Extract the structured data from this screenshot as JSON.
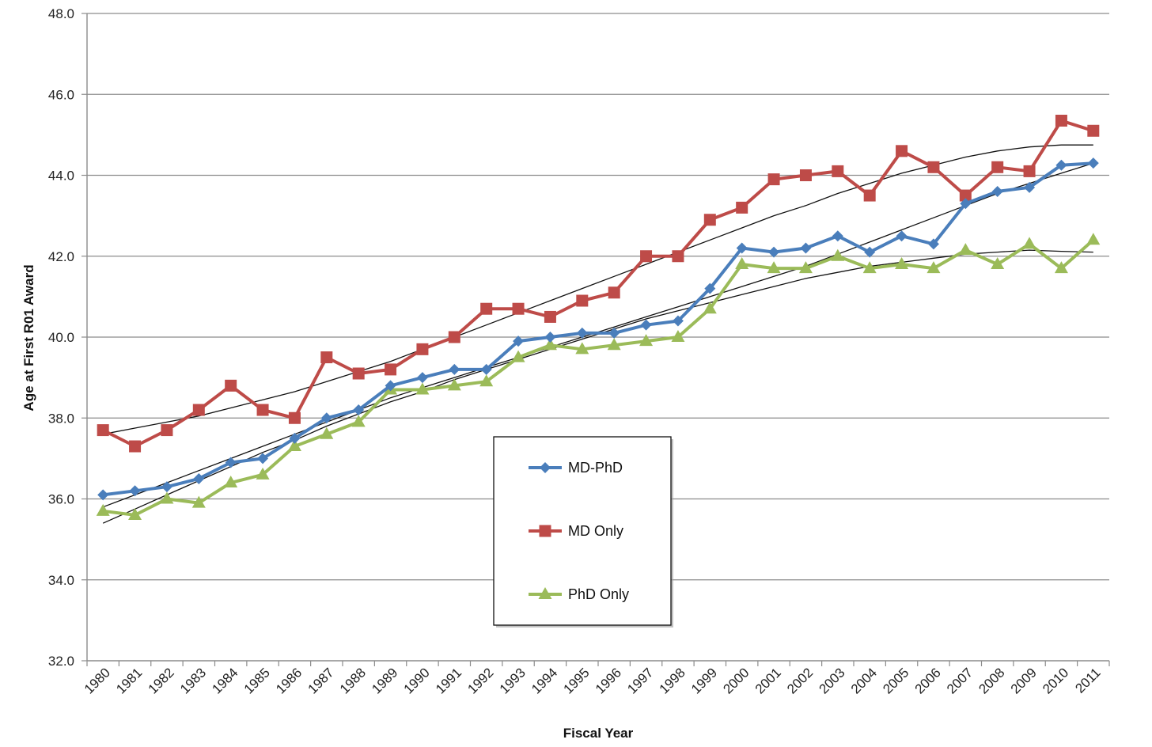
{
  "chart_data": {
    "type": "line",
    "title": "",
    "xlabel": "Fiscal Year",
    "ylabel": "Age at First R01 Award",
    "ylim": [
      32.0,
      48.0
    ],
    "yticks": [
      "32.0",
      "34.0",
      "36.0",
      "38.0",
      "40.0",
      "42.0",
      "44.0",
      "46.0",
      "48.0"
    ],
    "grid": "horizontal",
    "legend_placement": "center-bottom",
    "categories": [
      "1980",
      "1981",
      "1982",
      "1983",
      "1984",
      "1985",
      "1986",
      "1987",
      "1988",
      "1989",
      "1990",
      "1991",
      "1992",
      "1993",
      "1994",
      "1995",
      "1996",
      "1997",
      "1998",
      "1999",
      "2000",
      "2001",
      "2002",
      "2003",
      "2004",
      "2005",
      "2006",
      "2007",
      "2008",
      "2009",
      "2010",
      "2011"
    ],
    "series": [
      {
        "name": "MD-PhD",
        "color": "#4a7ebb",
        "marker": "diamond",
        "values": [
          36.1,
          36.2,
          36.3,
          36.5,
          36.9,
          37.0,
          37.5,
          38.0,
          38.2,
          38.8,
          39.0,
          39.2,
          39.2,
          39.9,
          40.0,
          40.1,
          40.1,
          40.3,
          40.4,
          41.2,
          42.2,
          42.1,
          42.2,
          42.5,
          42.1,
          42.5,
          42.3,
          43.3,
          43.6,
          43.7,
          44.25,
          44.3
        ],
        "trend": [
          35.8,
          36.1,
          36.4,
          36.7,
          37.0,
          37.3,
          37.6,
          37.9,
          38.2,
          38.5,
          38.75,
          39.0,
          39.25,
          39.5,
          39.75,
          40.0,
          40.25,
          40.5,
          40.75,
          41.0,
          41.25,
          41.5,
          41.75,
          42.05,
          42.35,
          42.65,
          42.95,
          43.25,
          43.55,
          43.8,
          44.05,
          44.3
        ]
      },
      {
        "name": "MD Only",
        "color": "#be4b48",
        "marker": "square",
        "values": [
          37.7,
          37.3,
          37.7,
          38.2,
          38.8,
          38.2,
          38.0,
          39.5,
          39.1,
          39.2,
          39.7,
          40.0,
          40.7,
          40.7,
          40.5,
          40.9,
          41.1,
          42.0,
          42.0,
          42.9,
          43.2,
          43.9,
          44.0,
          44.1,
          43.5,
          44.6,
          44.2,
          43.5,
          44.2,
          44.1,
          45.35,
          45.1
        ],
        "trend": [
          37.6,
          37.75,
          37.9,
          38.05,
          38.25,
          38.45,
          38.65,
          38.9,
          39.15,
          39.4,
          39.7,
          40.0,
          40.3,
          40.6,
          40.9,
          41.2,
          41.5,
          41.8,
          42.1,
          42.4,
          42.7,
          43.0,
          43.25,
          43.55,
          43.8,
          44.05,
          44.25,
          44.45,
          44.6,
          44.7,
          44.75,
          44.75
        ]
      },
      {
        "name": "PhD Only",
        "color": "#9bbb59",
        "marker": "triangle",
        "values": [
          35.7,
          35.6,
          36.0,
          35.9,
          36.4,
          36.6,
          37.3,
          37.6,
          37.9,
          38.7,
          38.7,
          38.8,
          38.9,
          39.5,
          39.8,
          39.7,
          39.8,
          39.9,
          40.0,
          40.7,
          41.8,
          41.7,
          41.7,
          42.0,
          41.7,
          41.8,
          41.7,
          42.15,
          41.8,
          42.3,
          41.7,
          42.4
        ],
        "trend": [
          35.4,
          35.75,
          36.1,
          36.45,
          36.8,
          37.15,
          37.45,
          37.8,
          38.1,
          38.4,
          38.65,
          38.95,
          39.2,
          39.45,
          39.7,
          39.95,
          40.2,
          40.45,
          40.65,
          40.85,
          41.05,
          41.25,
          41.45,
          41.6,
          41.75,
          41.85,
          41.95,
          42.05,
          42.1,
          42.15,
          42.12,
          42.1
        ]
      }
    ]
  }
}
